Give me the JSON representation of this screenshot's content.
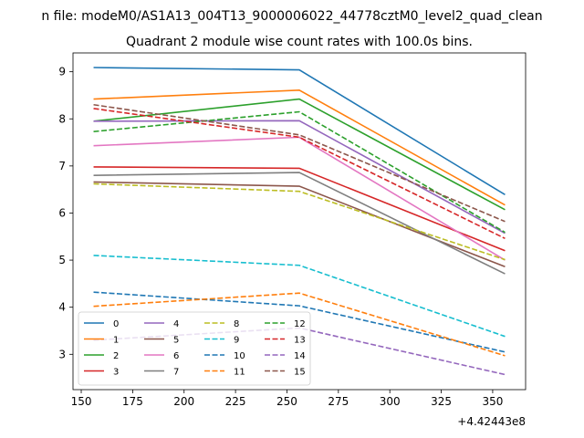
{
  "chart_data": {
    "type": "line",
    "suptitle": "n file: modeM0/AS1A13_004T13_9000006022_44778cztM0_level2_quad_clean",
    "title": "Quadrant 2 module wise count rates with 100.0s bins.",
    "xlabel": "",
    "ylabel": "",
    "x_offset_label": "+4.42443e8",
    "x": [
      156,
      256,
      356
    ],
    "xlim": [
      146,
      366
    ],
    "ylim": [
      2.25,
      9.4
    ],
    "xticks": [
      "150",
      "175",
      "200",
      "225",
      "250",
      "275",
      "300",
      "325",
      "350"
    ],
    "yticks": [
      "3",
      "4",
      "5",
      "6",
      "7",
      "8",
      "9"
    ],
    "legend_position": "lower-left",
    "series": [
      {
        "name": "0",
        "values": [
          9.09,
          9.04,
          6.39
        ],
        "color": "#1f77b4",
        "dash": "solid"
      },
      {
        "name": "1",
        "values": [
          8.42,
          8.61,
          6.17
        ],
        "color": "#ff7f0e",
        "dash": "solid"
      },
      {
        "name": "2",
        "values": [
          7.95,
          8.42,
          6.07
        ],
        "color": "#2ca02c",
        "dash": "solid"
      },
      {
        "name": "3",
        "values": [
          6.98,
          6.95,
          5.2
        ],
        "color": "#d62728",
        "dash": "solid"
      },
      {
        "name": "4",
        "values": [
          7.95,
          7.96,
          5.57
        ],
        "color": "#9467bd",
        "dash": "solid"
      },
      {
        "name": "5",
        "values": [
          6.66,
          6.57,
          4.86
        ],
        "color": "#8c564b",
        "dash": "solid"
      },
      {
        "name": "6",
        "values": [
          7.43,
          7.61,
          5.0
        ],
        "color": "#e377c2",
        "dash": "solid"
      },
      {
        "name": "7",
        "values": [
          6.8,
          6.86,
          4.71
        ],
        "color": "#7f7f7f",
        "dash": "solid"
      },
      {
        "name": "8",
        "values": [
          6.62,
          6.46,
          5.01
        ],
        "color": "#bcbd22",
        "dash": "dashed"
      },
      {
        "name": "9",
        "values": [
          5.1,
          4.89,
          3.38
        ],
        "color": "#17becf",
        "dash": "dashed"
      },
      {
        "name": "10",
        "values": [
          4.32,
          4.03,
          3.05
        ],
        "color": "#1f77b4",
        "dash": "dashed"
      },
      {
        "name": "11",
        "values": [
          4.02,
          4.3,
          2.97
        ],
        "color": "#ff7f0e",
        "dash": "dashed"
      },
      {
        "name": "12",
        "values": [
          7.73,
          8.15,
          5.59
        ],
        "color": "#2ca02c",
        "dash": "dashed"
      },
      {
        "name": "13",
        "values": [
          8.22,
          7.61,
          5.46
        ],
        "color": "#d62728",
        "dash": "dashed"
      },
      {
        "name": "14",
        "values": [
          3.3,
          3.56,
          2.57
        ],
        "color": "#9467bd",
        "dash": "dashed"
      },
      {
        "name": "15",
        "values": [
          8.3,
          7.66,
          5.82
        ],
        "color": "#8c564b",
        "dash": "dashed"
      }
    ]
  }
}
